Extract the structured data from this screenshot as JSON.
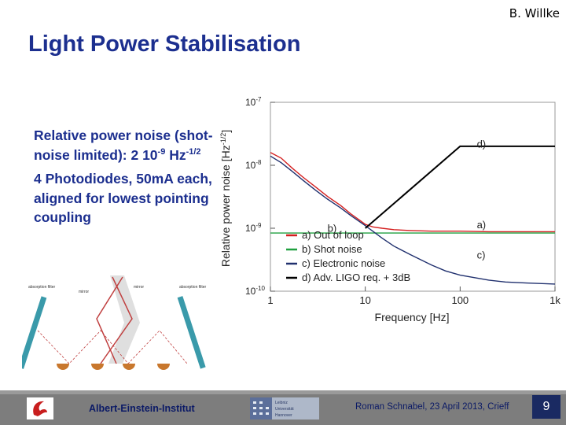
{
  "header": {
    "author": "B. Willke",
    "title": "Light Power Stabilisation"
  },
  "bullets": {
    "b1_pre": "Relative power noise (shot-noise limited): 2 10",
    "b1_exp1": "-9",
    "b1_mid": " Hz",
    "b1_exp2": "-1/2",
    "b2": "4 Photodiodes, 50mA each, aligned for lowest pointing coupling"
  },
  "optics": {
    "label_absorption": "absorption filter",
    "label_mirror": "mirror"
  },
  "chart_data": {
    "type": "line",
    "xscale": "log",
    "yscale": "log",
    "xlim": [
      1,
      1000
    ],
    "ylim": [
      1e-10,
      1e-07
    ],
    "xlabel": "Frequency [Hz]",
    "ylabel": "Relative power noise [Hz",
    "ylabel_sup": "-1/2",
    "ylabel_end": "]",
    "xticks": [
      {
        "v": 1,
        "label": "1"
      },
      {
        "v": 10,
        "label": "10"
      },
      {
        "v": 100,
        "label": "100"
      },
      {
        "v": 1000,
        "label": "1k"
      }
    ],
    "yticks": [
      {
        "base": "10",
        "exp": "-7",
        "v": 1e-07
      },
      {
        "base": "10",
        "exp": "-8",
        "v": 1e-08
      },
      {
        "base": "10",
        "exp": "-9",
        "v": 1e-09
      },
      {
        "base": "10",
        "exp": "-10",
        "v": 1e-10
      }
    ],
    "colors": {
      "a": "#d42020",
      "b": "#20a040",
      "c": "#20306e",
      "d": "#000000"
    },
    "series": [
      {
        "key": "a",
        "name": "a) Out of loop",
        "x": [
          1,
          1.3,
          1.7,
          2.2,
          3,
          4,
          5.5,
          7,
          9,
          10,
          12,
          15,
          20,
          30,
          50,
          100,
          200,
          500,
          1000
        ],
        "y": [
          1.6e-08,
          1.3e-08,
          9e-09,
          6.5e-09,
          4.5e-09,
          3.2e-09,
          2.3e-09,
          1.7e-09,
          1.3e-09,
          1.15e-09,
          1.05e-09,
          1e-09,
          9.5e-10,
          9.2e-10,
          9e-10,
          9e-10,
          8.8e-10,
          8.8e-10,
          8.8e-10
        ]
      },
      {
        "key": "b",
        "name": "b) Shot noise",
        "x": [
          1,
          1000
        ],
        "y": [
          8.4e-10,
          8.4e-10
        ]
      },
      {
        "key": "c",
        "name": "c) Electronic noise",
        "x": [
          1,
          1.3,
          1.7,
          2.2,
          3,
          4,
          5.5,
          7,
          10,
          15,
          20,
          30,
          50,
          70,
          100,
          200,
          300,
          500,
          1000
        ],
        "y": [
          1.4e-08,
          1.1e-08,
          8e-09,
          5.8e-09,
          4e-09,
          2.9e-09,
          2.1e-09,
          1.6e-09,
          1.1e-09,
          7e-10,
          5.2e-10,
          3.8e-10,
          2.6e-10,
          2.1e-10,
          1.8e-10,
          1.5e-10,
          1.4e-10,
          1.35e-10,
          1.3e-10
        ]
      },
      {
        "key": "d",
        "name": "d) Adv. LIGO req. + 3dB",
        "x": [
          10,
          100,
          1000
        ],
        "y": [
          1e-09,
          2e-08,
          2e-08
        ]
      }
    ],
    "annotations": [
      {
        "text": "d)",
        "x": 150,
        "y": 1.9e-08
      },
      {
        "text": "a)",
        "x": 150,
        "y": 1e-09
      },
      {
        "text": "b)",
        "x": 4,
        "y": 8.8e-10
      },
      {
        "text": "c)",
        "x": 150,
        "y": 3.3e-10
      }
    ]
  },
  "footer": {
    "institute": "Albert-Einstein-Institut",
    "luh_lines": [
      "Leibniz",
      "Universität",
      "Hannover"
    ],
    "credit": "Roman Schnabel, 23 April 2013, Crieff",
    "page": "9"
  }
}
